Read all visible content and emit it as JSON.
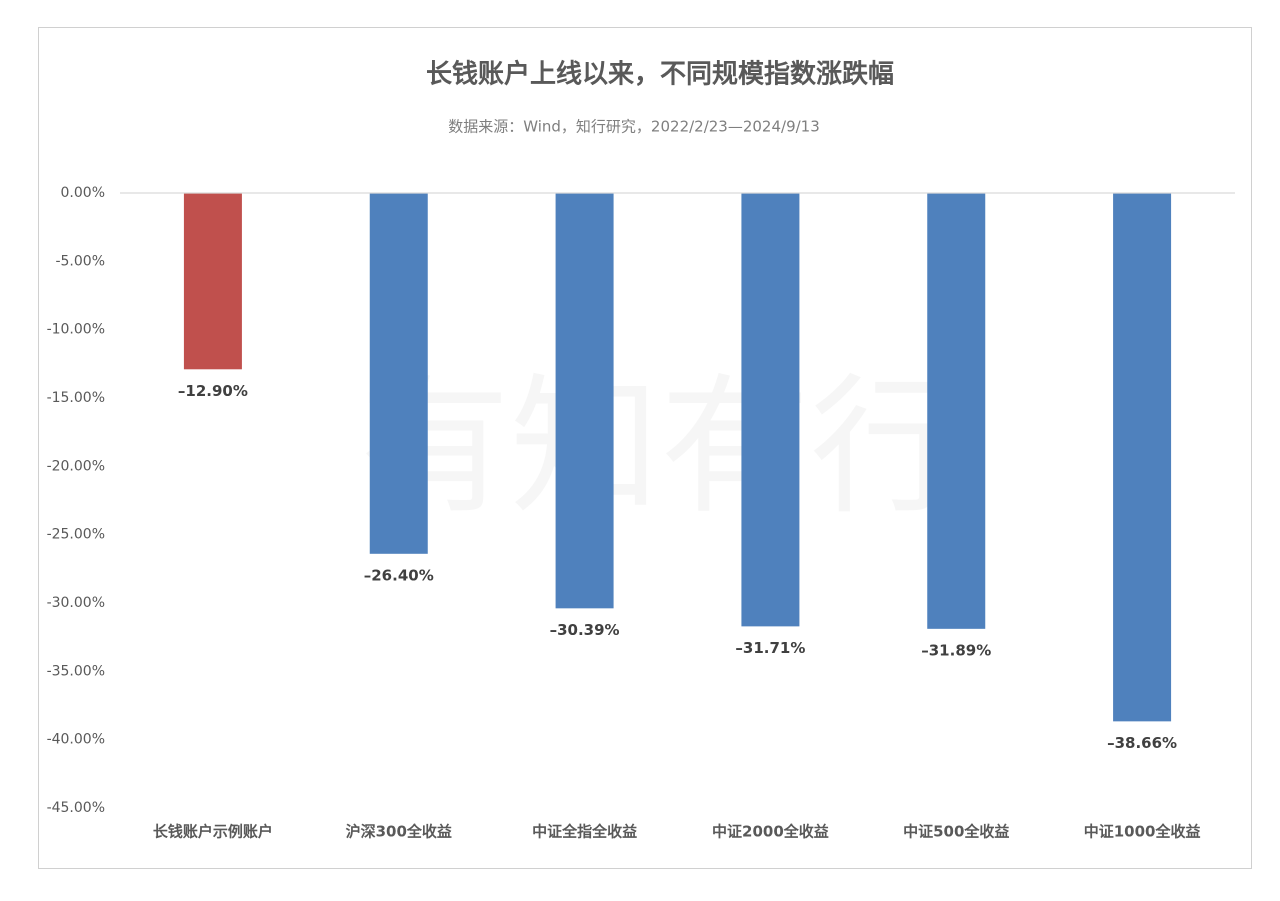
{
  "chart_data": {
    "type": "bar",
    "title": "长钱账户上线以来，不同规模指数涨跌幅",
    "subtitle": "数据来源：Wind，知行研究，2022/2/23—2024/9/13",
    "watermark": "有知有行",
    "categories": [
      "长钱账户示例账户",
      "沪深300全收益",
      "中证全指全收益",
      "中证2000全收益",
      "中证500全收益",
      "中证1000全收益"
    ],
    "values": [
      -12.9,
      -26.4,
      -30.39,
      -31.71,
      -31.89,
      -38.66
    ],
    "value_labels": [
      "–12.90%",
      "–26.40%",
      "–30.39%",
      "–31.71%",
      "–31.89%",
      "–38.66%"
    ],
    "colors": [
      "#c0504d",
      "#4f81bd",
      "#4f81bd",
      "#4f81bd",
      "#4f81bd",
      "#4f81bd"
    ],
    "ylim": [
      -45,
      0
    ],
    "yticks": [
      {
        "value": 0,
        "label": "0.00%"
      },
      {
        "value": -5,
        "label": "-5.00%"
      },
      {
        "value": -10,
        "label": "-10.00%"
      },
      {
        "value": -15,
        "label": "-15.00%"
      },
      {
        "value": -20,
        "label": "-20.00%"
      },
      {
        "value": -25,
        "label": "-25.00%"
      },
      {
        "value": -30,
        "label": "-30.00%"
      },
      {
        "value": -35,
        "label": "-35.00%"
      },
      {
        "value": -40,
        "label": "-40.00%"
      },
      {
        "value": -45,
        "label": "-45.00%"
      }
    ],
    "grid": false
  }
}
